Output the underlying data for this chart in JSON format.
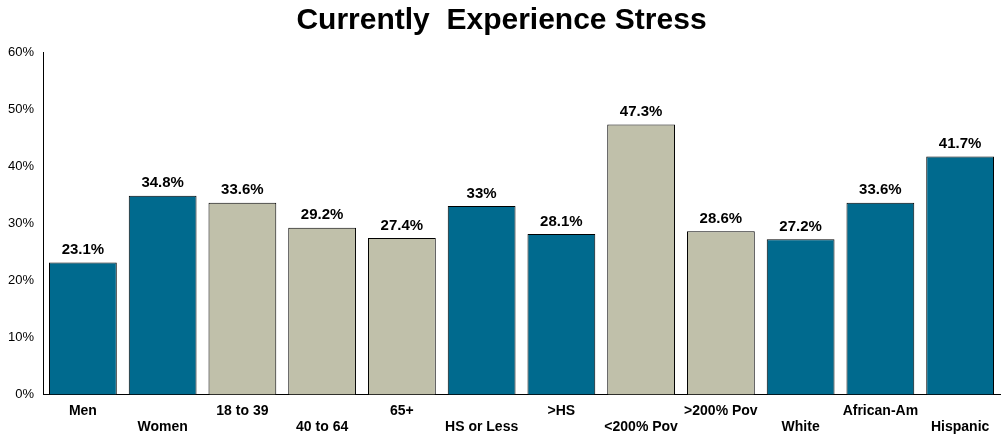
{
  "chart_data": {
    "type": "bar",
    "title": "Currently  Experience Stress",
    "categories": [
      "Men",
      "Women",
      "18 to 39",
      "40 to 64",
      "65+",
      "HS or Less",
      ">HS",
      "<200% Pov",
      ">200% Pov",
      "White",
      "African-Am",
      "Hispanic"
    ],
    "values": [
      23.1,
      34.8,
      33.6,
      29.2,
      27.4,
      33,
      28.1,
      47.3,
      28.6,
      27.2,
      33.6,
      41.7
    ],
    "colors": [
      "#006a8e",
      "#006a8e",
      "#c0c0aa",
      "#c0c0aa",
      "#c0c0aa",
      "#006a8e",
      "#006a8e",
      "#c0c0aa",
      "#c0c0aa",
      "#006a8e",
      "#006a8e",
      "#006a8e"
    ],
    "value_labels": [
      "23.1%",
      "34.8%",
      "33.6%",
      "29.2%",
      "27.4%",
      "33%",
      "28.1%",
      "47.3%",
      "28.6%",
      "27.2%",
      "33.6%",
      "41.7%"
    ],
    "ylim": [
      0,
      60
    ],
    "yticks": [
      {
        "value": 0,
        "label": "0%"
      },
      {
        "value": 10,
        "label": "10%"
      },
      {
        "value": 20,
        "label": "20%"
      },
      {
        "value": 30,
        "label": "30%"
      },
      {
        "value": 40,
        "label": "40%"
      },
      {
        "value": 50,
        "label": "50%"
      },
      {
        "value": 60,
        "label": "60%"
      }
    ],
    "grid": false,
    "legend": false
  }
}
